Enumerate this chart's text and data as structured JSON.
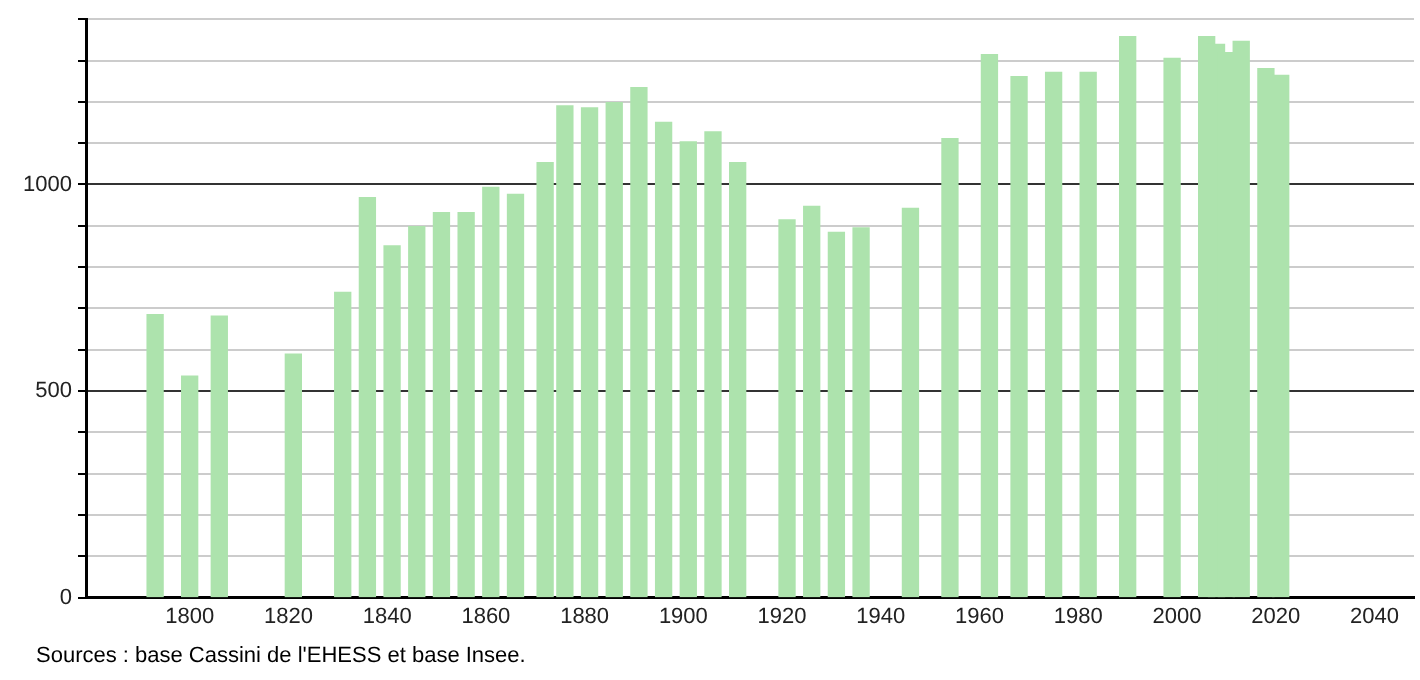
{
  "chart_data": {
    "type": "bar",
    "x": [
      1793,
      1800,
      1806,
      1821,
      1831,
      1836,
      1841,
      1846,
      1851,
      1856,
      1861,
      1866,
      1872,
      1876,
      1881,
      1886,
      1891,
      1896,
      1901,
      1906,
      1911,
      1921,
      1926,
      1931,
      1936,
      1946,
      1954,
      1962,
      1968,
      1975,
      1982,
      1990,
      1999,
      2006,
      2008,
      2010,
      2013,
      2018,
      2021
    ],
    "values": [
      685,
      536,
      681,
      589,
      739,
      968,
      851,
      898,
      932,
      932,
      993,
      976,
      1053,
      1190,
      1185,
      1198,
      1234,
      1150,
      1103,
      1127,
      1053,
      914,
      947,
      884,
      895,
      942,
      1111,
      1314,
      1261,
      1271,
      1271,
      1358,
      1305,
      1358,
      1339,
      1319,
      1346,
      1280,
      1264
    ],
    "color": "#ade3ad",
    "xlim": [
      1779,
      2048
    ],
    "xticks": [
      1800,
      1820,
      1840,
      1860,
      1880,
      1900,
      1920,
      1940,
      1960,
      1980,
      2000,
      2020,
      2040
    ],
    "ylim": [
      0,
      1400
    ],
    "yticks": [
      0,
      {
        "value": 100,
        "label": null
      },
      {
        "value": 200,
        "label": null
      },
      {
        "value": 300,
        "label": null
      },
      {
        "value": 400,
        "label": null
      },
      500,
      {
        "value": 600,
        "label": null
      },
      {
        "value": 700,
        "label": null
      },
      {
        "value": 800,
        "label": null
      },
      {
        "value": 900,
        "label": null
      },
      1000,
      {
        "value": 1100,
        "label": null
      },
      {
        "value": 1200,
        "label": null
      },
      {
        "value": 1300,
        "label": null
      },
      {
        "value": 1400,
        "label": null
      }
    ],
    "grid": "y",
    "annotations": [
      "Sources : base Cassini de l'EHESS et base Insee."
    ]
  }
}
